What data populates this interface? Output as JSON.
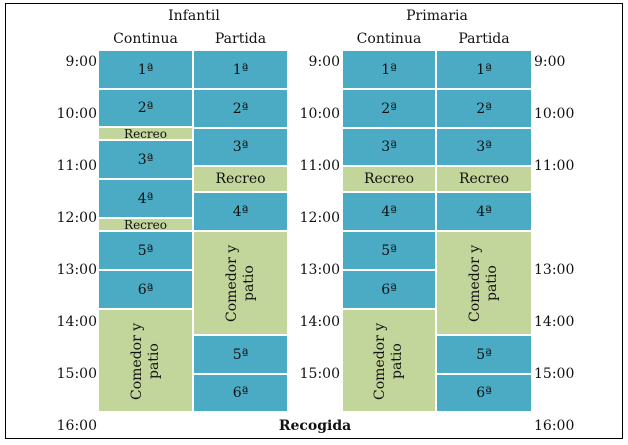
{
  "headers": {
    "infantil": "Infantil",
    "primaria": "Primaria",
    "continua": "Continua",
    "partida": "Partida"
  },
  "times": [
    "9:00",
    "10:00",
    "11:00",
    "12:00",
    "13:00",
    "14:00",
    "15:00",
    "16:00"
  ],
  "labels": {
    "p1": "1ª",
    "p2": "2ª",
    "p3": "3ª",
    "p4": "4ª",
    "p5": "5ª",
    "p6": "6ª",
    "recreo": "Recreo",
    "comedor": "Comedor y patio",
    "recogida": "Recogida"
  },
  "colors": {
    "class_period": "#4babc4",
    "break_period": "#c2d69b"
  }
}
